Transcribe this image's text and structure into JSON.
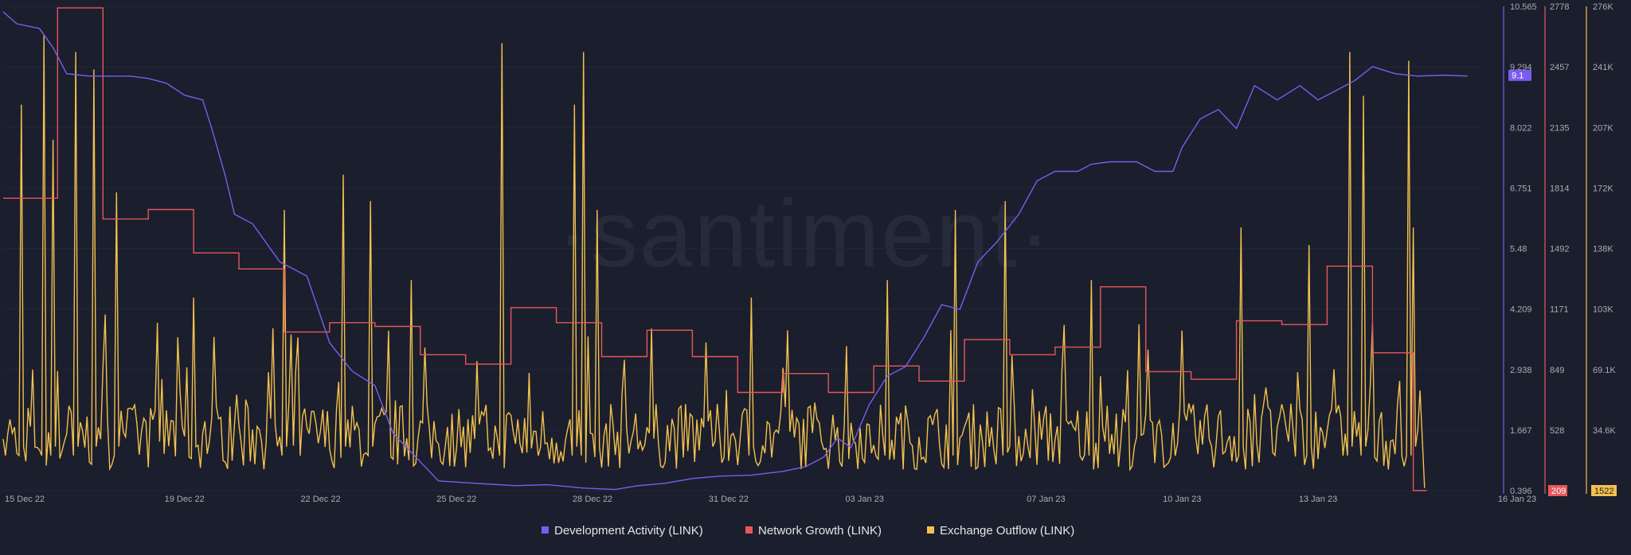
{
  "watermark": "·santiment·",
  "chart_data": {
    "type": "line",
    "title": "",
    "x_start_label": "15 Dec 22",
    "x_end_label": "16 Jan 23",
    "x_ticks": [
      {
        "label": "15 Dec 22",
        "day": 0
      },
      {
        "label": "19 Dec 22",
        "day": 4
      },
      {
        "label": "22 Dec 22",
        "day": 7
      },
      {
        "label": "25 Dec 22",
        "day": 10
      },
      {
        "label": "28 Dec 22",
        "day": 13
      },
      {
        "label": "31 Dec 22",
        "day": 16
      },
      {
        "label": "03 Jan 23",
        "day": 19
      },
      {
        "label": "07 Jan 23",
        "day": 23
      },
      {
        "label": "10 Jan 23",
        "day": 26
      },
      {
        "label": "13 Jan 23",
        "day": 29
      },
      {
        "label": "16 Jan 23",
        "day": 32
      }
    ],
    "axes": [
      {
        "id": "dev",
        "color": "#7b5cf0",
        "min": 0.396,
        "max": 10.565,
        "ticks": [
          "10.565",
          "9.294",
          "8.022",
          "6.751",
          "5.48",
          "4.209",
          "2.938",
          "1.667",
          "0.396"
        ],
        "current": "9.1"
      },
      {
        "id": "ng",
        "color": "#e6575c",
        "min": 209,
        "max": 2778,
        "ticks": [
          "2778",
          "2457",
          "2135",
          "1814",
          "1492",
          "1171",
          "849",
          "528",
          "209"
        ],
        "current": "209"
      },
      {
        "id": "eo",
        "color": "#f2c14e",
        "min": 0,
        "max": 276000,
        "ticks": [
          "276K",
          "241K",
          "207K",
          "172K",
          "138K",
          "103K",
          "69.1K",
          "34.6K"
        ],
        "current": "1522"
      }
    ],
    "series": [
      {
        "name": "Development Activity (LINK)",
        "axis": "dev",
        "color": "#7b5cf0",
        "points": [
          [
            0,
            10.45
          ],
          [
            0.3,
            10.2
          ],
          [
            0.8,
            10.1
          ],
          [
            1.1,
            9.7
          ],
          [
            1.4,
            9.15
          ],
          [
            1.9,
            9.1
          ],
          [
            2.8,
            9.1
          ],
          [
            3.2,
            9.05
          ],
          [
            3.6,
            8.95
          ],
          [
            4.0,
            8.7
          ],
          [
            4.4,
            8.6
          ],
          [
            4.6,
            8.0
          ],
          [
            4.9,
            7.0
          ],
          [
            5.1,
            6.2
          ],
          [
            5.5,
            6.0
          ],
          [
            6.1,
            5.2
          ],
          [
            6.7,
            4.9
          ],
          [
            7.2,
            3.5
          ],
          [
            7.7,
            2.9
          ],
          [
            8.2,
            2.6
          ],
          [
            8.6,
            1.6
          ],
          [
            9.1,
            1.1
          ],
          [
            9.6,
            0.6
          ],
          [
            10.4,
            0.55
          ],
          [
            11.3,
            0.5
          ],
          [
            12.0,
            0.52
          ],
          [
            12.8,
            0.45
          ],
          [
            13.5,
            0.42
          ],
          [
            14.0,
            0.5
          ],
          [
            14.6,
            0.55
          ],
          [
            15.2,
            0.65
          ],
          [
            15.8,
            0.7
          ],
          [
            16.5,
            0.72
          ],
          [
            17.2,
            0.8
          ],
          [
            17.7,
            0.9
          ],
          [
            18.1,
            1.1
          ],
          [
            18.4,
            1.5
          ],
          [
            18.7,
            1.3
          ],
          [
            19.1,
            2.2
          ],
          [
            19.5,
            2.8
          ],
          [
            19.9,
            3.0
          ],
          [
            20.3,
            3.6
          ],
          [
            20.7,
            4.3
          ],
          [
            21.1,
            4.2
          ],
          [
            21.5,
            5.2
          ],
          [
            21.9,
            5.6
          ],
          [
            22.4,
            6.2
          ],
          [
            22.8,
            6.9
          ],
          [
            23.2,
            7.1
          ],
          [
            23.7,
            7.1
          ],
          [
            24.0,
            7.25
          ],
          [
            24.4,
            7.3
          ],
          [
            25.0,
            7.3
          ],
          [
            25.4,
            7.1
          ],
          [
            25.8,
            7.1
          ],
          [
            26.0,
            7.6
          ],
          [
            26.4,
            8.2
          ],
          [
            26.8,
            8.4
          ],
          [
            27.2,
            8.0
          ],
          [
            27.6,
            8.9
          ],
          [
            28.1,
            8.6
          ],
          [
            28.6,
            8.9
          ],
          [
            29.0,
            8.6
          ],
          [
            29.4,
            8.8
          ],
          [
            29.8,
            9.0
          ],
          [
            30.2,
            9.3
          ],
          [
            30.7,
            9.15
          ],
          [
            31.2,
            9.1
          ],
          [
            31.8,
            9.12
          ],
          [
            32.3,
            9.1
          ]
        ]
      },
      {
        "name": "Network Growth (LINK)",
        "axis": "ng",
        "color": "#e6575c",
        "points": [
          [
            0,
            1760
          ],
          [
            1.2,
            1760
          ],
          [
            1.2,
            2770
          ],
          [
            2.2,
            2770
          ],
          [
            2.2,
            1650
          ],
          [
            3.2,
            1650
          ],
          [
            3.2,
            1700
          ],
          [
            4.2,
            1700
          ],
          [
            4.2,
            1470
          ],
          [
            5.2,
            1470
          ],
          [
            5.2,
            1385
          ],
          [
            6.2,
            1385
          ],
          [
            6.2,
            1050
          ],
          [
            7.2,
            1050
          ],
          [
            7.2,
            1100
          ],
          [
            8.2,
            1100
          ],
          [
            8.2,
            1080
          ],
          [
            9.2,
            1080
          ],
          [
            9.2,
            930
          ],
          [
            10.2,
            930
          ],
          [
            10.2,
            880
          ],
          [
            11.2,
            880
          ],
          [
            11.2,
            1180
          ],
          [
            12.2,
            1180
          ],
          [
            12.2,
            1100
          ],
          [
            13.2,
            1100
          ],
          [
            13.2,
            920
          ],
          [
            14.2,
            920
          ],
          [
            14.2,
            1060
          ],
          [
            15.2,
            1060
          ],
          [
            15.2,
            920
          ],
          [
            16.2,
            920
          ],
          [
            16.2,
            730
          ],
          [
            17.2,
            730
          ],
          [
            17.2,
            830
          ],
          [
            18.2,
            830
          ],
          [
            18.2,
            730
          ],
          [
            19.2,
            730
          ],
          [
            19.2,
            870
          ],
          [
            20.2,
            870
          ],
          [
            20.2,
            790
          ],
          [
            21.2,
            790
          ],
          [
            21.2,
            1010
          ],
          [
            22.2,
            1010
          ],
          [
            22.2,
            930
          ],
          [
            23.2,
            930
          ],
          [
            23.2,
            970
          ],
          [
            24.2,
            970
          ],
          [
            24.2,
            1290
          ],
          [
            25.2,
            1290
          ],
          [
            25.2,
            840
          ],
          [
            26.2,
            840
          ],
          [
            26.2,
            800
          ],
          [
            27.2,
            800
          ],
          [
            27.2,
            1110
          ],
          [
            28.2,
            1110
          ],
          [
            28.2,
            1090
          ],
          [
            29.2,
            1090
          ],
          [
            29.2,
            1400
          ],
          [
            30.2,
            1400
          ],
          [
            30.2,
            940
          ],
          [
            31.1,
            940
          ],
          [
            31.1,
            209
          ],
          [
            31.4,
            209
          ]
        ]
      },
      {
        "name": "Exchange Outflow (LINK)",
        "axis": "eo",
        "color": "#f2c14e",
        "peaks": [
          [
            0.4,
            220000
          ],
          [
            0.9,
            260000
          ],
          [
            1.1,
            200000
          ],
          [
            1.6,
            250000
          ],
          [
            2.0,
            240000
          ],
          [
            2.5,
            170000
          ],
          [
            4.2,
            110000
          ],
          [
            6.2,
            160000
          ],
          [
            7.5,
            180000
          ],
          [
            8.1,
            165000
          ],
          [
            9.0,
            120000
          ],
          [
            11.0,
            255000
          ],
          [
            12.6,
            220000
          ],
          [
            12.8,
            250000
          ],
          [
            13.1,
            160000
          ],
          [
            16.5,
            110000
          ],
          [
            19.5,
            120000
          ],
          [
            21.0,
            160000
          ],
          [
            22.1,
            165000
          ],
          [
            24.0,
            120000
          ],
          [
            27.3,
            150000
          ],
          [
            28.8,
            140000
          ],
          [
            29.7,
            250000
          ],
          [
            30.0,
            225000
          ],
          [
            31.0,
            245000
          ],
          [
            31.1,
            150000
          ]
        ],
        "sample_step": 0.05,
        "current": 1522
      }
    ]
  },
  "legend": [
    {
      "label": "Development Activity (LINK)",
      "color": "#7b5cf0"
    },
    {
      "label": "Network Growth (LINK)",
      "color": "#e6575c"
    },
    {
      "label": "Exchange Outflow (LINK)",
      "color": "#f2c14e"
    }
  ]
}
